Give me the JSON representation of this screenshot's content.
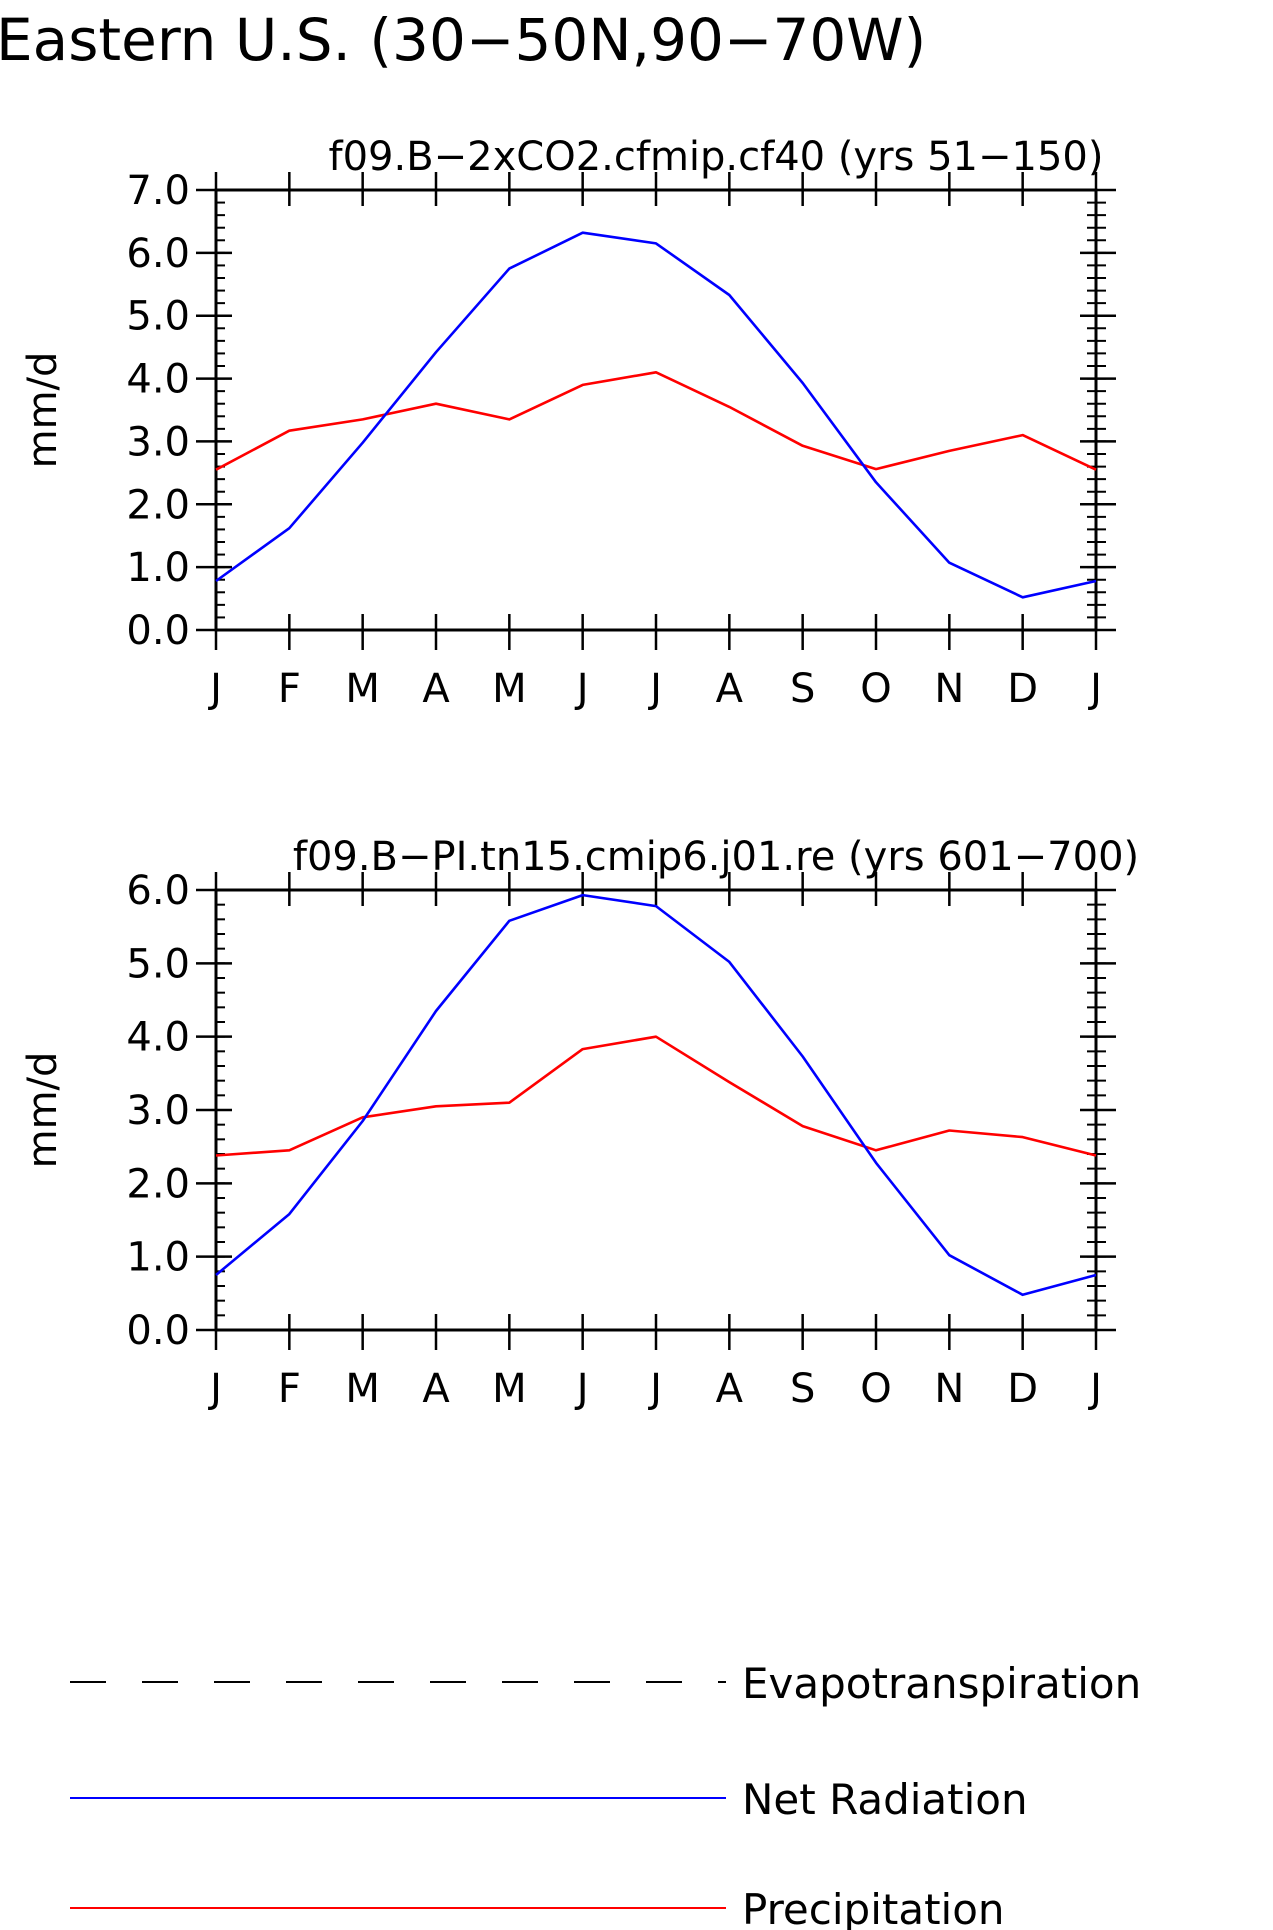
{
  "figure": {
    "title": "Eastern U.S. (30−50N,90−70W)"
  },
  "legend": {
    "items": [
      {
        "label": "Evapotranspiration",
        "color": "#000000",
        "style": "dashed"
      },
      {
        "label": "Net Radiation",
        "color": "#0000ff",
        "style": "solid"
      },
      {
        "label": "Precipitation",
        "color": "#ff0000",
        "style": "solid"
      }
    ]
  },
  "chart_data": [
    {
      "type": "line",
      "title": "f09.B−2xCO2.cfmip.cf40 (yrs 51−150)",
      "xlabel": "",
      "ylabel": "mm/d",
      "categories": [
        "J",
        "F",
        "M",
        "A",
        "M",
        "J",
        "J",
        "A",
        "S",
        "O",
        "N",
        "D",
        "J"
      ],
      "ylim": [
        0,
        7
      ],
      "yticks": [
        "0.0",
        "1.0",
        "2.0",
        "3.0",
        "4.0",
        "5.0",
        "6.0",
        "7.0"
      ],
      "series": [
        {
          "name": "Net Radiation",
          "color": "#0000ff",
          "values": [
            0.78,
            1.62,
            2.98,
            4.42,
            5.75,
            6.32,
            6.15,
            5.33,
            3.93,
            2.35,
            1.07,
            0.52,
            0.78
          ]
        },
        {
          "name": "Precipitation",
          "color": "#ff0000",
          "values": [
            2.55,
            3.17,
            3.35,
            3.6,
            3.35,
            3.9,
            4.1,
            3.55,
            2.93,
            2.56,
            2.85,
            3.1,
            2.55
          ]
        }
      ]
    },
    {
      "type": "line",
      "title": "f09.B−PI.tn15.cmip6.j01.re (yrs 601−700)",
      "xlabel": "",
      "ylabel": "mm/d",
      "categories": [
        "J",
        "F",
        "M",
        "A",
        "M",
        "J",
        "J",
        "A",
        "S",
        "O",
        "N",
        "D",
        "J"
      ],
      "ylim": [
        0,
        6
      ],
      "yticks": [
        "0.0",
        "1.0",
        "2.0",
        "3.0",
        "4.0",
        "5.0",
        "6.0"
      ],
      "series": [
        {
          "name": "Net Radiation",
          "color": "#0000ff",
          "values": [
            0.75,
            1.58,
            2.85,
            4.35,
            5.58,
            5.93,
            5.78,
            5.02,
            3.73,
            2.28,
            1.02,
            0.48,
            0.75
          ]
        },
        {
          "name": "Precipitation",
          "color": "#ff0000",
          "values": [
            2.38,
            2.45,
            2.9,
            3.05,
            3.1,
            3.83,
            4.0,
            3.38,
            2.78,
            2.45,
            2.72,
            2.63,
            2.38
          ]
        }
      ]
    }
  ]
}
